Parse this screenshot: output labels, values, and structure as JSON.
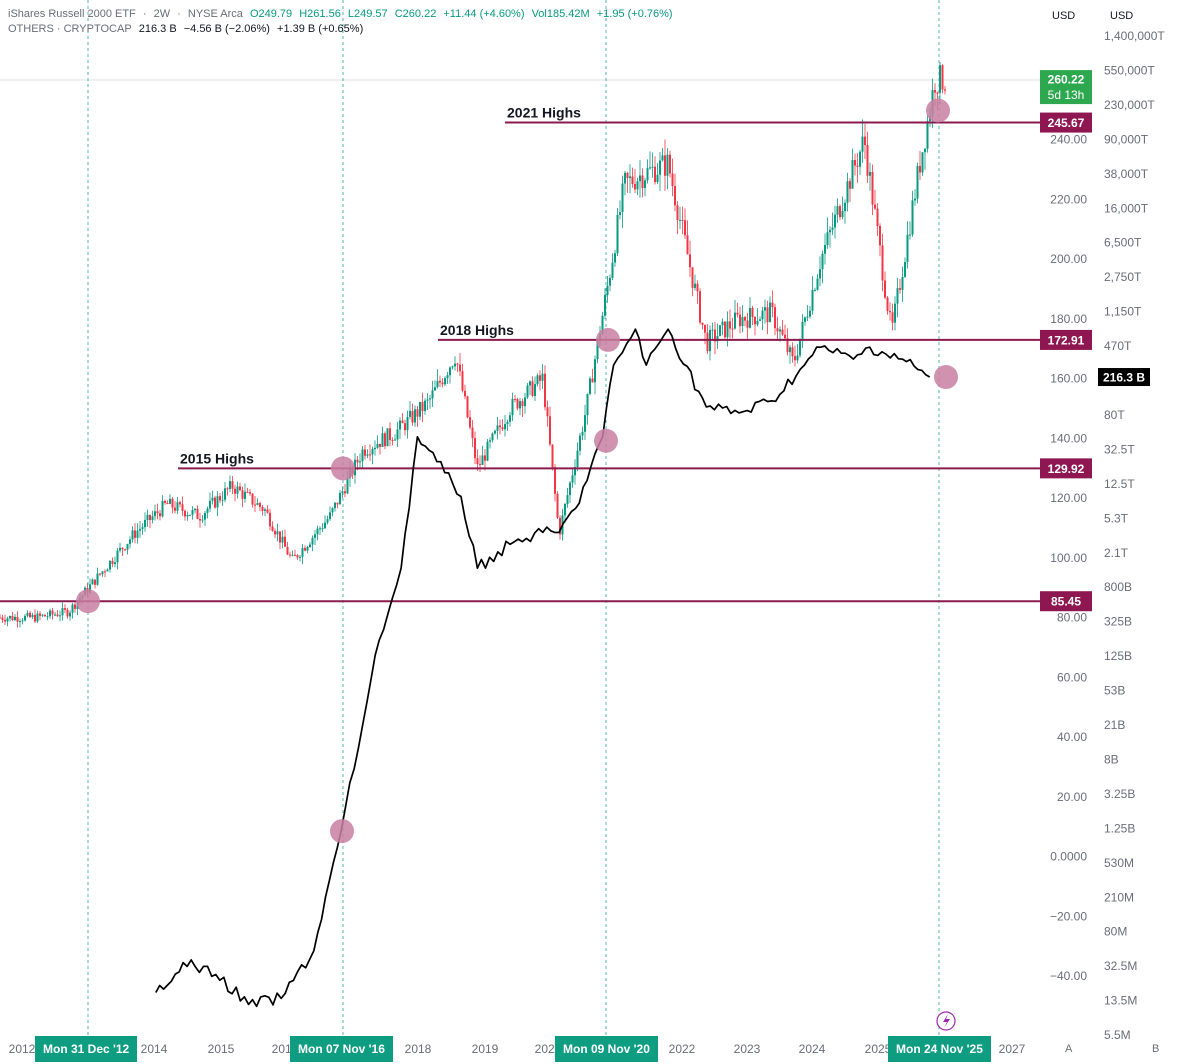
{
  "legend_main": {
    "name": "iShares Russell 2000 ETF",
    "interval": "2W",
    "exchange": "NYSE Arca",
    "open": "O249.79",
    "high": "H261.56",
    "low": "L249.57",
    "close": "C260.22",
    "change": "+11.44 (+4.60%)",
    "vol": "Vol185.42M",
    "vol_change": "+1.95 (+0.76%)"
  },
  "legend_overlay": {
    "name": "OTHERS · CRYPTOCAP",
    "value": "216.3 B",
    "change1": "−4.56 B (−2.06%)",
    "change2": "+1.39 B (+0.65%)"
  },
  "axis_currency_left": "USD",
  "axis_currency_right": "USD",
  "scale_letters": [
    "A",
    "B"
  ],
  "dates": [
    "Mon 31 Dec '12",
    "Mon 07 Nov '16",
    "Mon 09 Nov '20",
    "Mon 24 Nov '25"
  ],
  "colors": {
    "up": "#089981",
    "down": "#f23645",
    "level_line": "#8b1a4e",
    "level_tag": "#8e1651",
    "price_tag": "#2ea84f",
    "marker": "#c87fa0",
    "date_pill": "#0f9d82",
    "overlay_line": "#000000",
    "crosshair": "#26a69a"
  },
  "chart_data": {
    "type": "candlestick",
    "title": "iShares Russell 2000 ETF · 2W · NYSE Arca",
    "x_tick_labels": [
      "2012",
      "2014",
      "2015",
      "2016",
      "2018",
      "2019",
      "2020",
      "2022",
      "2023",
      "2024",
      "2025",
      "2027"
    ],
    "left_axis": {
      "scale": "linear",
      "tick_labels": [
        "240.00",
        "220.00",
        "200.00",
        "180.00",
        "160.00",
        "140.00",
        "120.00",
        "100.00",
        "80.00",
        "60.00",
        "40.00",
        "20.00",
        "0.0000",
        "−20.00",
        "−40.00"
      ],
      "ylim": [
        -43,
        295
      ]
    },
    "right_axis": {
      "scale": "log",
      "tick_labels": [
        "1,400,000T",
        "550,000T",
        "230,000T",
        "90,000T",
        "38,000T",
        "16,000T",
        "6,500T",
        "2,750T",
        "1,150T",
        "470T",
        "190T",
        "80T",
        "32.5T",
        "12.5T",
        "5.3T",
        "2.1T",
        "800B",
        "325B",
        "125B",
        "53B",
        "21B",
        "8B",
        "3.25B",
        "1.25B",
        "530M",
        "210M",
        "80M",
        "32.5M",
        "13.5M",
        "5.5M"
      ]
    },
    "levels": [
      {
        "label": "2021 Highs",
        "value": 245.67
      },
      {
        "label": "2018 Highs",
        "value": 172.91
      },
      {
        "label": "2015 Highs",
        "value": 129.92
      },
      {
        "label": "",
        "value": 85.45
      }
    ],
    "current_price": {
      "value": 260.22,
      "label": "260.22",
      "countdown": "5d 13h"
    },
    "overlay_current": {
      "label": "216.3 B"
    },
    "series": [
      {
        "name": "iShares Russell 2000 ETF",
        "type": "candlestick",
        "x": [
          "2012-03",
          "2012-09",
          "2013-03",
          "2013-09",
          "2014-03",
          "2014-09",
          "2015-03",
          "2015-09",
          "2016-02",
          "2016-09",
          "2017-03",
          "2017-09",
          "2018-03",
          "2018-08",
          "2018-12",
          "2019-06",
          "2019-12",
          "2020-03",
          "2020-08",
          "2020-12",
          "2021-03",
          "2021-06",
          "2021-11",
          "2022-06",
          "2022-12",
          "2023-06",
          "2023-10",
          "2024-03",
          "2024-07",
          "2024-11",
          "2025-04",
          "2025-09",
          "2025-12"
        ],
        "close": [
          80,
          82,
          95,
          108,
          118,
          114,
          124,
          116,
          99,
          114,
          136,
          142,
          152,
          168,
          130,
          150,
          160,
          108,
          150,
          192,
          225,
          228,
          232,
          172,
          180,
          182,
          165,
          200,
          220,
          240,
          175,
          230,
          260
        ]
      },
      {
        "name": "OTHERS · CRYPTOCAP",
        "type": "line",
        "axis": "right",
        "x": [
          "2014-01",
          "2014-06",
          "2014-12",
          "2015-06",
          "2015-12",
          "2016-06",
          "2016-11",
          "2017-03",
          "2017-06",
          "2017-10",
          "2018-01",
          "2018-06",
          "2018-09",
          "2018-12",
          "2019-06",
          "2019-12",
          "2020-03",
          "2020-06",
          "2020-11",
          "2021-01",
          "2021-05",
          "2021-07",
          "2021-11",
          "2022-06",
          "2022-12",
          "2023-06",
          "2023-12",
          "2024-03",
          "2024-09",
          "2024-12",
          "2025-06",
          "2025-11"
        ],
        "values_log10_usd": [
          7.05,
          7.3,
          7.2,
          6.95,
          7.0,
          7.4,
          8.4,
          9.3,
          10.0,
          10.6,
          11.7,
          11.4,
          11.2,
          10.6,
          10.8,
          10.9,
          10.9,
          11.1,
          11.7,
          12.3,
          12.6,
          12.3,
          12.6,
          11.95,
          11.9,
          12.0,
          12.3,
          12.45,
          12.35,
          12.45,
          12.35,
          12.2
        ]
      }
    ]
  }
}
